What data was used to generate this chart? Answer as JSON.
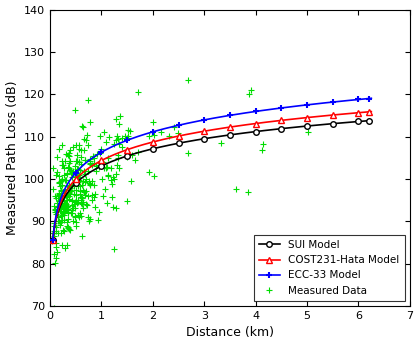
{
  "title": "",
  "xlabel": "Distance (km)",
  "ylabel": "Measured Path Loss (dB)",
  "xlim": [
    0,
    7
  ],
  "ylim": [
    70,
    140
  ],
  "xticks": [
    0,
    1,
    2,
    3,
    4,
    5,
    6,
    7
  ],
  "yticks": [
    70,
    80,
    90,
    100,
    110,
    120,
    130,
    140
  ],
  "sui_color": "#000000",
  "cost_color": "#ff0000",
  "ecc_color": "#0000ff",
  "measured_color": "#00dd00",
  "legend_loc": "lower right",
  "n_measured": 350,
  "measured_seed": 10
}
